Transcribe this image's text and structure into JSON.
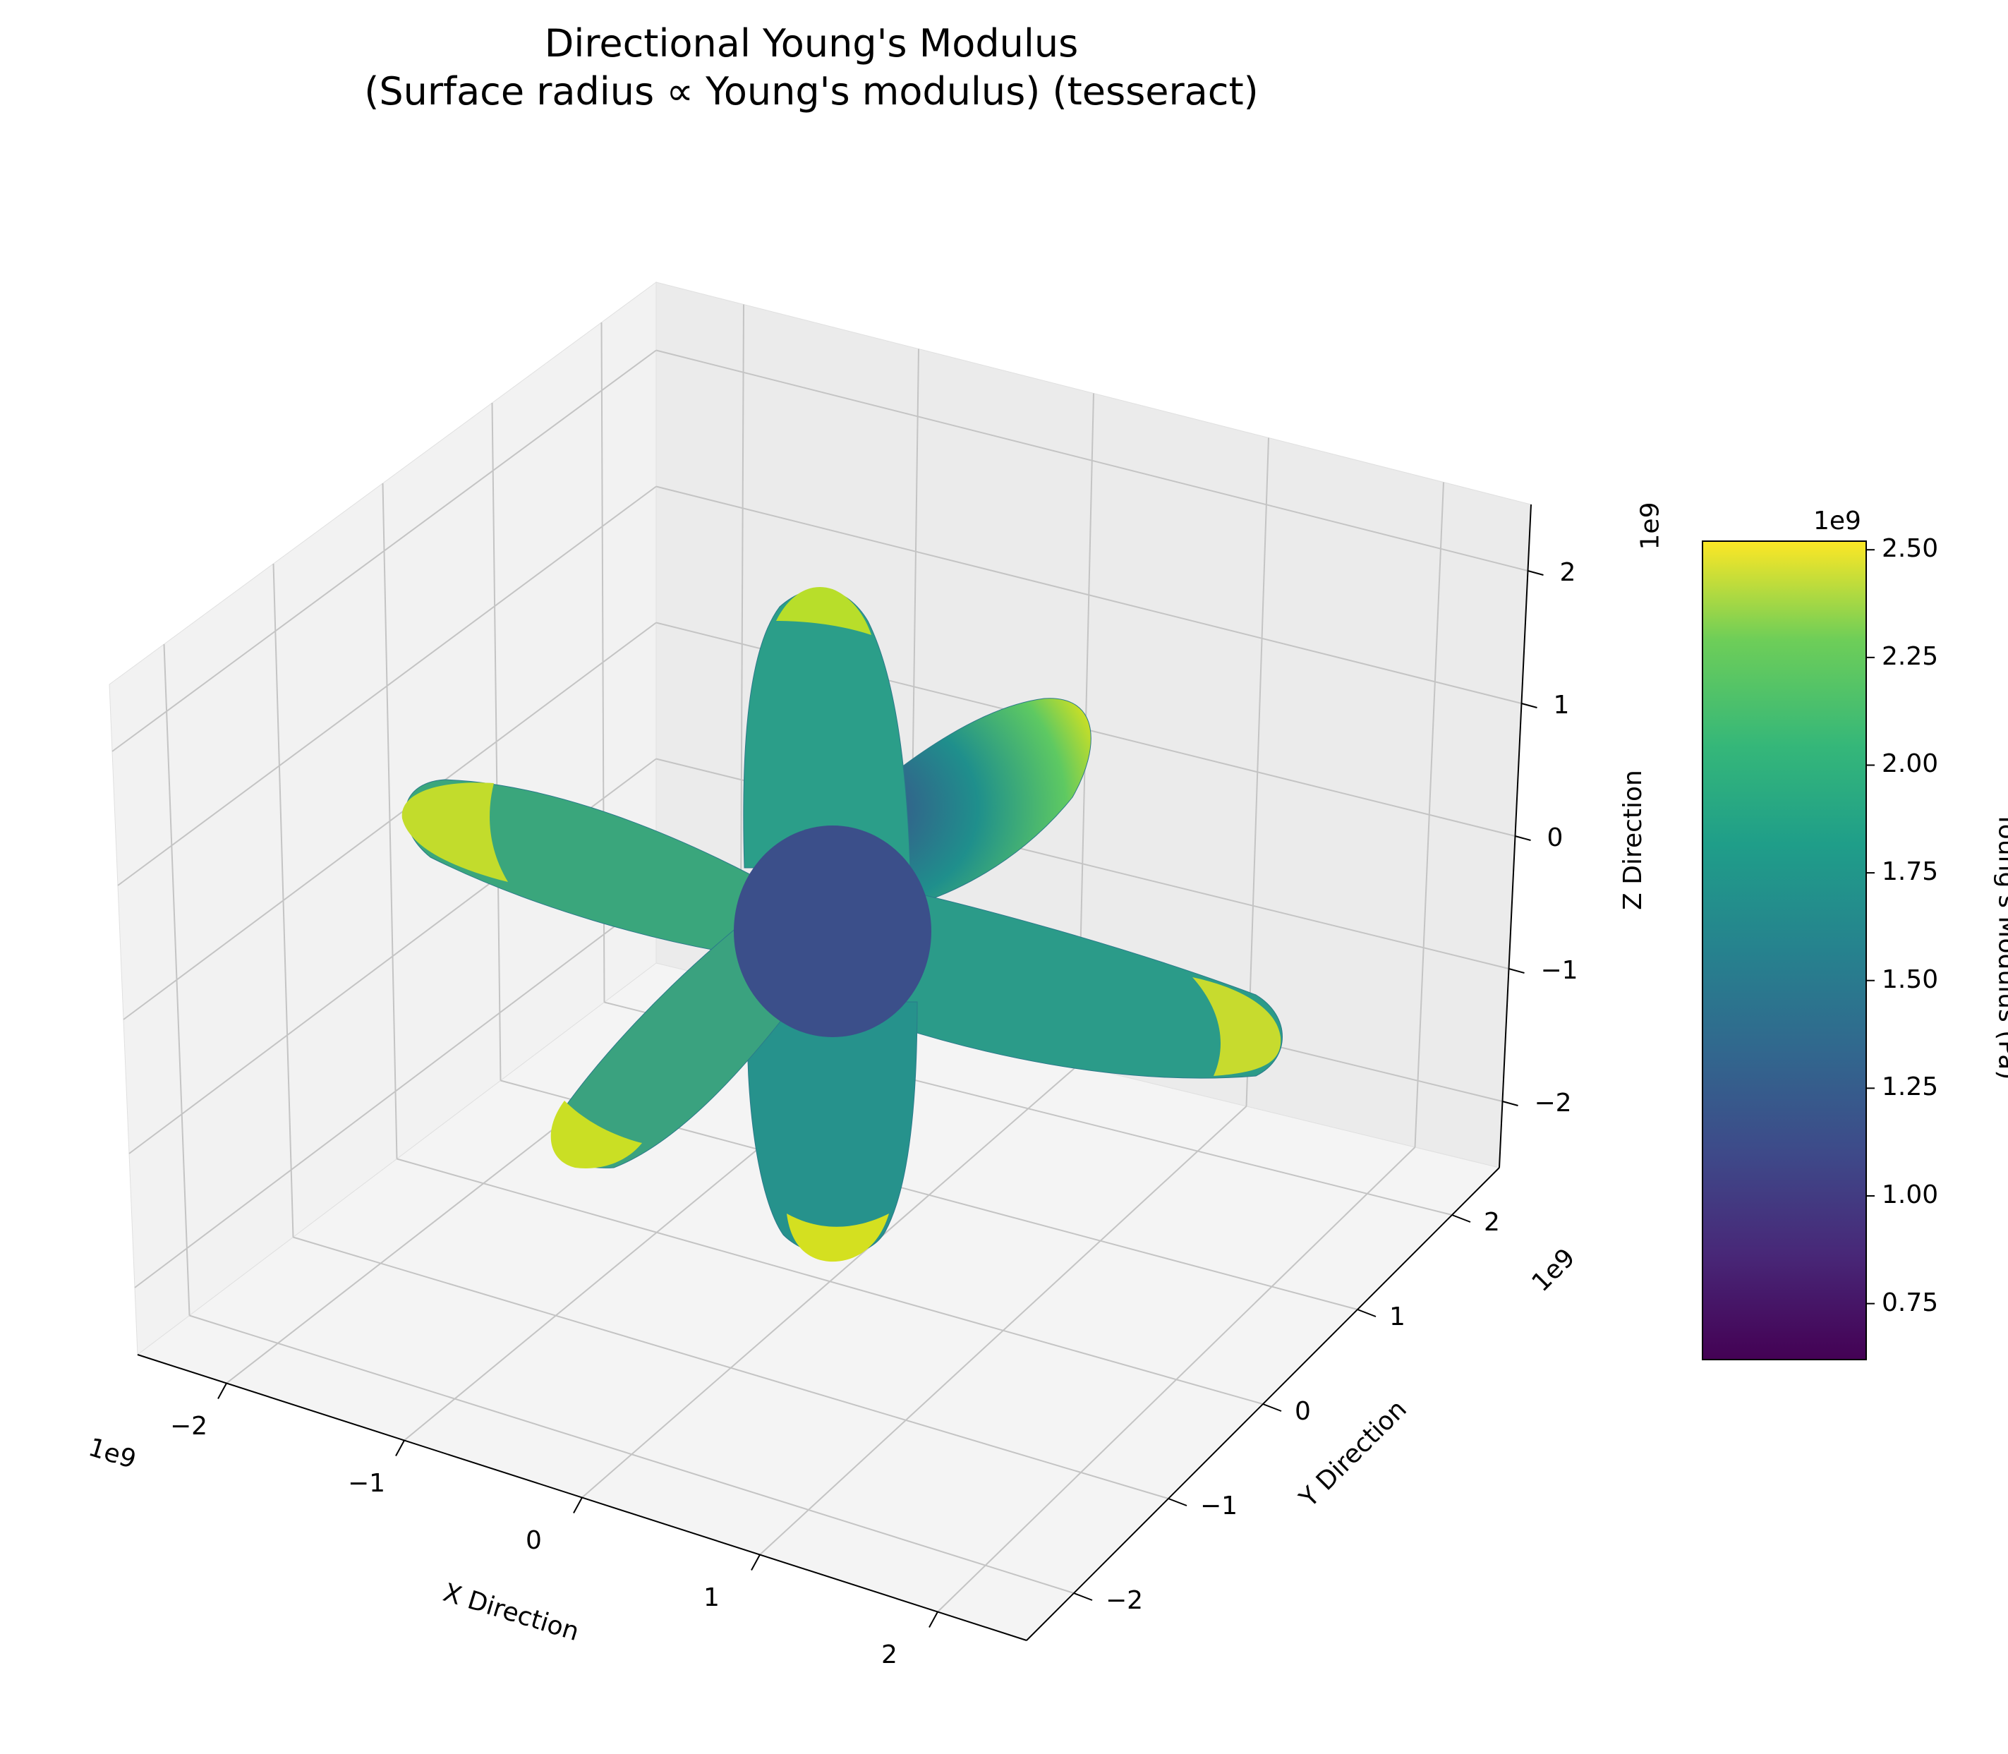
{
  "chart_data": {
    "type": "3d-surface",
    "title_line1": "Directional Young's Modulus",
    "title_line2": "(Surface radius ∝ Young's modulus) (tesseract)",
    "xlabel": "X Direction",
    "ylabel": "Y Direction",
    "zlabel": "Z Direction",
    "axis_multiplier": "1e9",
    "x_ticks": [
      "−2",
      "−1",
      "0",
      "1",
      "2"
    ],
    "y_ticks": [
      "−2",
      "−1",
      "0",
      "1",
      "2"
    ],
    "z_ticks": [
      "2",
      "1",
      "0",
      "−1",
      "−2"
    ],
    "xlim": [
      -2.5,
      2.5
    ],
    "ylim": [
      -2.5,
      2.5
    ],
    "zlim": [
      -2.5,
      2.5
    ],
    "grid": true,
    "colorbar": {
      "label": "Young's Modulus (Pa)",
      "multiplier": "1e9",
      "colormap": "viridis",
      "range": [
        0.62,
        2.52
      ],
      "ticks": [
        "2.50",
        "2.25",
        "2.00",
        "1.75",
        "1.50",
        "1.25",
        "1.00",
        "0.75"
      ],
      "tick_values": [
        2.5,
        2.25,
        2.0,
        1.75,
        1.5,
        1.25,
        1.0,
        0.75
      ]
    },
    "surface": {
      "description": "six lobes along ±X, ±Y, ±Z axes",
      "max_modulus": 2.5,
      "min_modulus": 0.62
    }
  }
}
